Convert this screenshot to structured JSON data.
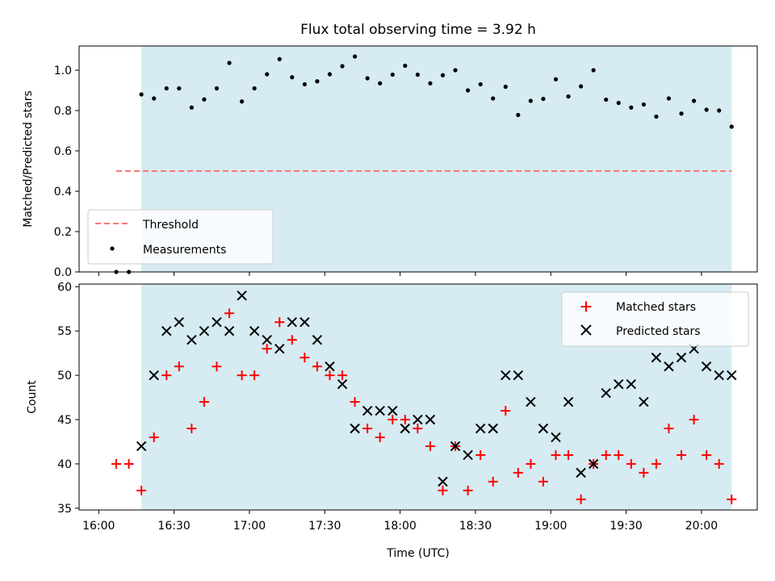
{
  "chart_data": [
    {
      "type": "scatter",
      "title": "Flux total observing time = 3.92 h",
      "xlabel": "",
      "ylabel": "Matched/Predicted stars",
      "xlim": [
        15.87,
        20.37
      ],
      "ylim": [
        0.0,
        1.12
      ],
      "yticks": [
        0.0,
        0.2,
        0.4,
        0.6,
        0.8,
        1.0
      ],
      "ytick_labels": [
        "0.0",
        "0.2",
        "0.4",
        "0.6",
        "0.8",
        "1.0"
      ],
      "xticks": [
        16.0,
        16.5,
        17.0,
        17.5,
        18.0,
        18.5,
        19.0,
        19.5,
        20.0
      ],
      "shaded_span": [
        16.2833,
        20.2
      ],
      "shaded_color": "#add8e6",
      "threshold": {
        "name": "Threshold",
        "value": 0.5,
        "x_range": [
          16.1167,
          20.2
        ],
        "color": "#f87878"
      },
      "legend": {
        "position": "lower-left",
        "entries": [
          "Threshold",
          "Measurements"
        ]
      },
      "series": [
        {
          "name": "Measurements",
          "color": "#000000",
          "x": [
            16.1167,
            16.2,
            16.2833,
            16.3667,
            16.45,
            16.5333,
            16.6167,
            16.7,
            16.7833,
            16.8667,
            16.95,
            17.0333,
            17.1167,
            17.2,
            17.2833,
            17.3667,
            17.45,
            17.5333,
            17.6167,
            17.7,
            17.7833,
            17.8667,
            17.95,
            18.0333,
            18.1167,
            18.2,
            18.2833,
            18.3667,
            18.45,
            18.5333,
            18.6167,
            18.7,
            18.7833,
            18.8667,
            18.95,
            19.0333,
            19.1167,
            19.2,
            19.2833,
            19.3667,
            19.45,
            19.5333,
            19.6167,
            19.7,
            19.7833,
            19.8667,
            19.95,
            20.0333,
            20.1167,
            20.2
          ],
          "y": [
            0.0,
            0.0,
            0.88,
            0.86,
            0.91,
            0.91,
            0.815,
            0.855,
            0.91,
            1.036,
            0.845,
            0.91,
            0.98,
            1.055,
            0.965,
            0.93,
            0.945,
            0.98,
            1.02,
            1.068,
            0.96,
            0.935,
            0.978,
            1.022,
            0.978,
            0.935,
            0.975,
            1.0,
            0.9,
            0.93,
            0.86,
            0.918,
            0.778,
            0.848,
            0.858,
            0.955,
            0.87,
            0.92,
            1.0,
            0.854,
            0.838,
            0.815,
            0.83,
            0.77,
            0.86,
            0.785,
            0.848,
            0.804,
            0.8,
            0.72
          ]
        }
      ]
    },
    {
      "type": "scatter",
      "title": "",
      "xlabel": "Time (UTC)",
      "ylabel": "Count",
      "xlim": [
        15.87,
        20.37
      ],
      "ylim": [
        34.8,
        60.3
      ],
      "yticks": [
        35,
        40,
        45,
        50,
        55,
        60
      ],
      "ytick_labels": [
        "35",
        "40",
        "45",
        "50",
        "55",
        "60"
      ],
      "xticks": [
        16.0,
        16.5,
        17.0,
        17.5,
        18.0,
        18.5,
        19.0,
        19.5,
        20.0
      ],
      "xtick_labels": [
        "16:00",
        "16:30",
        "17:00",
        "17:30",
        "18:00",
        "18:30",
        "19:00",
        "19:30",
        "20:00"
      ],
      "shaded_span": [
        16.2833,
        20.2
      ],
      "shaded_color": "#add8e6",
      "legend": {
        "position": "top-right",
        "entries": [
          "Matched stars",
          "Predicted stars"
        ]
      },
      "series": [
        {
          "name": "Matched stars",
          "marker": "plus",
          "color": "#ff0000",
          "x": [
            16.1167,
            16.2,
            16.2833,
            16.3667,
            16.45,
            16.5333,
            16.6167,
            16.7,
            16.7833,
            16.8667,
            16.95,
            17.0333,
            17.1167,
            17.2,
            17.2833,
            17.3667,
            17.45,
            17.5333,
            17.6167,
            17.7,
            17.7833,
            17.8667,
            17.95,
            18.0333,
            18.1167,
            18.2,
            18.2833,
            18.3667,
            18.45,
            18.5333,
            18.6167,
            18.7,
            18.7833,
            18.8667,
            18.95,
            19.0333,
            19.1167,
            19.2,
            19.2833,
            19.3667,
            19.45,
            19.5333,
            19.6167,
            19.7,
            19.7833,
            19.8667,
            19.95,
            20.0333,
            20.1167,
            20.2
          ],
          "y": [
            40,
            40,
            37,
            43,
            50,
            51,
            44,
            47,
            51,
            57,
            50,
            50,
            53,
            56,
            54,
            52,
            51,
            50,
            50,
            47,
            44,
            43,
            45,
            45,
            44,
            42,
            37,
            42,
            37,
            41,
            38,
            46,
            39,
            40,
            38,
            41,
            41,
            36,
            40,
            41,
            41,
            40,
            39,
            40,
            44,
            41,
            45,
            41,
            40,
            36
          ]
        },
        {
          "name": "Predicted stars",
          "marker": "x",
          "color": "#000000",
          "x": [
            16.2833,
            16.3667,
            16.45,
            16.5333,
            16.6167,
            16.7,
            16.7833,
            16.8667,
            16.95,
            17.0333,
            17.1167,
            17.2,
            17.2833,
            17.3667,
            17.45,
            17.5333,
            17.6167,
            17.7,
            17.7833,
            17.8667,
            17.95,
            18.0333,
            18.1167,
            18.2,
            18.2833,
            18.3667,
            18.45,
            18.5333,
            18.6167,
            18.7,
            18.7833,
            18.8667,
            18.95,
            19.0333,
            19.1167,
            19.2,
            19.2833,
            19.3667,
            19.45,
            19.5333,
            19.6167,
            19.7,
            19.7833,
            19.8667,
            19.95,
            20.0333,
            20.1167,
            20.2
          ],
          "y": [
            42,
            50,
            55,
            56,
            54,
            55,
            56,
            55,
            59,
            55,
            54,
            53,
            56,
            56,
            54,
            51,
            49,
            44,
            46,
            46,
            46,
            44,
            45,
            45,
            38,
            42,
            41,
            44,
            44,
            50,
            50,
            47,
            44,
            43,
            47,
            39,
            40,
            48,
            49,
            49,
            47,
            52,
            51,
            52,
            53,
            51,
            50,
            50
          ]
        }
      ]
    }
  ]
}
